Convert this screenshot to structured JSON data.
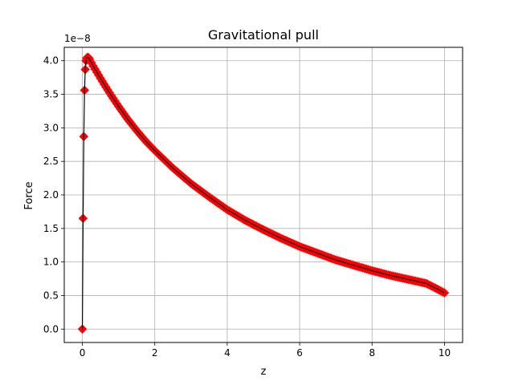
{
  "chart_data": {
    "type": "line",
    "title": "Gravitational pull",
    "xlabel": "z",
    "ylabel": "Force",
    "y_offset_label": "1e−8",
    "y_scale": 1e-08,
    "xlim": [
      -0.5,
      10.5
    ],
    "ylim": [
      -0.2,
      4.2
    ],
    "x_ticks": [
      0,
      2,
      4,
      6,
      8,
      10
    ],
    "x_tick_labels": [
      "0",
      "2",
      "4",
      "6",
      "8",
      "10"
    ],
    "y_ticks": [
      0.0,
      0.5,
      1.0,
      1.5,
      2.0,
      2.5,
      3.0,
      3.5,
      4.0
    ],
    "y_tick_labels": [
      "0.0",
      "0.5",
      "1.0",
      "1.5",
      "2.0",
      "2.5",
      "3.0",
      "3.5",
      "4.0"
    ],
    "grid": true,
    "legend": "none",
    "series": [
      {
        "line_color": "#000000",
        "marker": "diamond",
        "marker_color": "#ff0000",
        "x": [
          0,
          0.02,
          0.04,
          0.06,
          0.08,
          0.1,
          0.12,
          0.14,
          0.16,
          0.18,
          0.2,
          0.25,
          0.3,
          0.4,
          0.5,
          0.6,
          0.8,
          1.0,
          1.25,
          1.5,
          1.75,
          2.0,
          2.5,
          3.0,
          3.5,
          4.0,
          4.5,
          5.0,
          5.5,
          6.0,
          6.5,
          7.0,
          7.5,
          8.0,
          8.5,
          9.0,
          9.5,
          10.0
        ],
        "y": [
          0,
          1.65,
          2.87,
          3.56,
          3.87,
          4.0,
          4.04,
          4.05,
          4.05,
          4.04,
          4.02,
          3.97,
          3.92,
          3.83,
          3.74,
          3.65,
          3.48,
          3.32,
          3.13,
          2.96,
          2.8,
          2.66,
          2.4,
          2.17,
          1.97,
          1.78,
          1.62,
          1.48,
          1.35,
          1.23,
          1.13,
          1.03,
          0.95,
          0.87,
          0.8,
          0.74,
          0.68,
          0.54
        ]
      }
    ]
  }
}
